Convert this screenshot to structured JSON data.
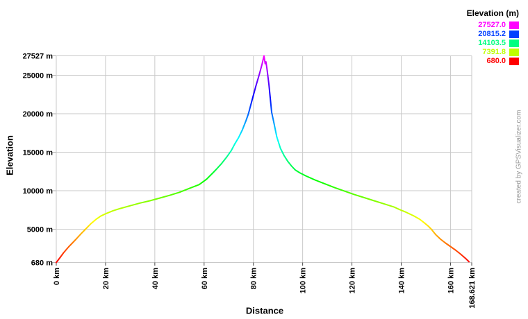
{
  "watermark": "created by GPSVisualizer.com",
  "chart": {
    "x_axis": {
      "title": "Distance",
      "min": 0,
      "max": 168.621,
      "ticks": [
        {
          "value": 0,
          "label": "0 km"
        },
        {
          "value": 20,
          "label": "20 km"
        },
        {
          "value": 40,
          "label": "40 km"
        },
        {
          "value": 60,
          "label": "60 km"
        },
        {
          "value": 80,
          "label": "80 km"
        },
        {
          "value": 100,
          "label": "100 km"
        },
        {
          "value": 120,
          "label": "120 km"
        },
        {
          "value": 140,
          "label": "140 km"
        },
        {
          "value": 160,
          "label": "160 km"
        },
        {
          "value": 168.621,
          "label": "168.621 km"
        }
      ]
    },
    "y_axis": {
      "title": "Elevation",
      "min": 680,
      "max": 27527,
      "ticks": [
        {
          "value": 680,
          "label": "680 m"
        },
        {
          "value": 5000,
          "label": "5000 m"
        },
        {
          "value": 10000,
          "label": "10000 m"
        },
        {
          "value": 15000,
          "label": "15000 m"
        },
        {
          "value": 20000,
          "label": "20000 m"
        },
        {
          "value": 25000,
          "label": "25000 m"
        },
        {
          "value": 27527,
          "label": "27527 m"
        }
      ]
    },
    "grid_color": "#c9c9c9"
  },
  "legend": {
    "title": "Elevation (m)",
    "entries": [
      {
        "label": "27527.0",
        "color": "#ff00ff"
      },
      {
        "label": "20815.2",
        "color": "#0040ff"
      },
      {
        "label": "14103.5",
        "color": "#00ff80"
      },
      {
        "label": "7391.8",
        "color": "#bfff00"
      },
      {
        "label": "680.0",
        "color": "#ff0000"
      }
    ]
  },
  "chart_data": {
    "type": "line",
    "title": "",
    "xlabel": "Distance (km)",
    "ylabel": "Elevation (m)",
    "xlim": [
      0,
      168.621
    ],
    "ylim": [
      680,
      27527
    ],
    "grid": true,
    "legend_position": "top-right",
    "color_scale": {
      "mapping": "elevation-rainbow",
      "hue_deg_at_min": 0,
      "hue_deg_at_max": 300,
      "min": 680,
      "max": 27527
    },
    "series": [
      {
        "name": "elevation_profile",
        "x": [
          0,
          1.5,
          3,
          5,
          6.5,
          8,
          10,
          12,
          14,
          16,
          18,
          20,
          23,
          26,
          30,
          34,
          38,
          42,
          46,
          50,
          54,
          58,
          61,
          63.5,
          65,
          67,
          69,
          71,
          72.5,
          74,
          75.5,
          77,
          78,
          79.5,
          81,
          82.3,
          83.5,
          84.3,
          84.8,
          85.1,
          85.5,
          86.3,
          87.4,
          88.3,
          89.5,
          91,
          92.5,
          94,
          95.5,
          97,
          99,
          101.5,
          105,
          109,
          113,
          117,
          121,
          125,
          129,
          133,
          137,
          139,
          142,
          145,
          147.5,
          149.5,
          151,
          152.2,
          154,
          156,
          158,
          160,
          162,
          164,
          166,
          167.5
        ],
        "y": [
          680,
          1300,
          1950,
          2700,
          3200,
          3700,
          4400,
          5050,
          5700,
          6250,
          6700,
          7000,
          7400,
          7700,
          8050,
          8400,
          8700,
          9050,
          9400,
          9800,
          10300,
          10800,
          11500,
          12300,
          12800,
          13500,
          14300,
          15200,
          16100,
          16900,
          17900,
          19100,
          20000,
          21800,
          23600,
          25000,
          26400,
          27527,
          26500,
          26750,
          25900,
          23800,
          20200,
          18900,
          17000,
          15500,
          14550,
          13800,
          13200,
          12700,
          12300,
          11900,
          11400,
          10900,
          10400,
          9950,
          9500,
          9100,
          8700,
          8300,
          7900,
          7600,
          7200,
          6750,
          6300,
          5800,
          5400,
          5000,
          4300,
          3700,
          3200,
          2750,
          2300,
          1800,
          1250,
          780
        ]
      }
    ]
  }
}
